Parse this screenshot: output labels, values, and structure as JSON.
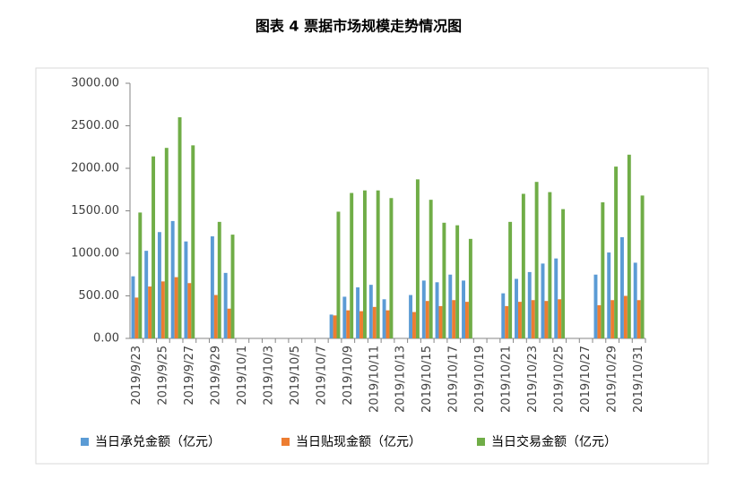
{
  "chart_data": {
    "type": "bar",
    "title": "图表 4  票据市场规模走势情况图",
    "categories": [
      "2019/9/23",
      null,
      "2019/9/25",
      null,
      "2019/9/27",
      null,
      "2019/9/29",
      null,
      "2019/10/1",
      null,
      "2019/10/3",
      null,
      "2019/10/5",
      null,
      "2019/10/7",
      null,
      "2019/10/9",
      null,
      "2019/10/11",
      null,
      "2019/10/13",
      null,
      "2019/10/15",
      null,
      "2019/10/17",
      null,
      "2019/10/19",
      null,
      "2019/10/21",
      null,
      "2019/10/23",
      null,
      "2019/10/25",
      null,
      "2019/10/27",
      null,
      "2019/10/29",
      null,
      "2019/10/31"
    ],
    "series": [
      {
        "name": "当日承兑金额（亿元）",
        "color": "#5b9bd5",
        "values": [
          730,
          1030,
          1250,
          1380,
          1140,
          0,
          1200,
          770,
          0,
          0,
          0,
          0,
          0,
          0,
          0,
          280,
          490,
          600,
          630,
          460,
          0,
          510,
          680,
          660,
          750,
          680,
          0,
          0,
          530,
          700,
          780,
          880,
          940,
          0,
          0,
          750,
          1010,
          1190,
          890
        ]
      },
      {
        "name": "当日贴现金额（亿元）",
        "color": "#ed7d31",
        "values": [
          480,
          610,
          670,
          720,
          650,
          0,
          510,
          350,
          0,
          0,
          0,
          0,
          0,
          0,
          0,
          270,
          330,
          320,
          370,
          330,
          0,
          310,
          440,
          380,
          450,
          430,
          0,
          0,
          380,
          430,
          450,
          440,
          460,
          0,
          0,
          390,
          450,
          500,
          450
        ]
      },
      {
        "name": "当日交易金额（亿元）",
        "color": "#70ad47",
        "values": [
          1480,
          2140,
          2240,
          2600,
          2270,
          0,
          1370,
          1220,
          0,
          0,
          0,
          0,
          0,
          0,
          0,
          1490,
          1710,
          1740,
          1740,
          1650,
          0,
          1870,
          1630,
          1360,
          1330,
          1170,
          0,
          0,
          1370,
          1700,
          1840,
          1720,
          1520,
          0,
          0,
          1600,
          2020,
          2160,
          1680
        ]
      }
    ],
    "ylim": [
      0,
      3000
    ],
    "yticks": [
      {
        "value": 0,
        "label": "0.00"
      },
      {
        "value": 500,
        "label": "500.00"
      },
      {
        "value": 1000,
        "label": "1000.00"
      },
      {
        "value": 1500,
        "label": "1500.00"
      },
      {
        "value": 2000,
        "label": "2000.00"
      },
      {
        "value": 2500,
        "label": "2500.00"
      },
      {
        "value": 3000,
        "label": "3000.00"
      }
    ],
    "grid": false
  }
}
